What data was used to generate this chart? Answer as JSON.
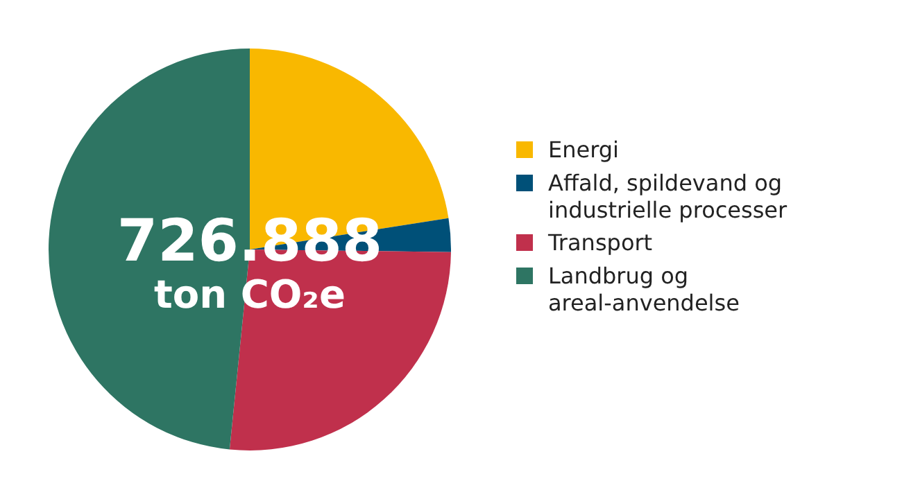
{
  "chart_data": {
    "type": "pie",
    "categories": [
      "Energi",
      "Affald, spildevand og industrielle processer",
      "Transport",
      "Landbrug og areal-anvendelse"
    ],
    "values": [
      22.5,
      2.7,
      26.4,
      48.4
    ],
    "colors": [
      "#f9b800",
      "#005078",
      "#c0304c",
      "#2e7563"
    ],
    "annotations": [
      "726.888",
      "ton CO₂e"
    ],
    "legend": "right"
  }
}
